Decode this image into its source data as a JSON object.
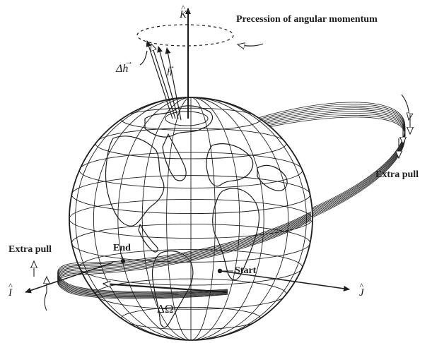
{
  "labels": {
    "precession": "Precession of angular momentum",
    "extra_pull_right": "Extra pull",
    "extra_pull_left": "Extra pull",
    "end": "End",
    "start": "Start",
    "delta_omega": "ΔΩ",
    "delta_h": "Δh",
    "h": "h",
    "k_axis": "K",
    "i_axis": "I",
    "j_axis": "J"
  },
  "colors": {
    "ink": "#1e1e1e",
    "background": "#ffffff"
  }
}
